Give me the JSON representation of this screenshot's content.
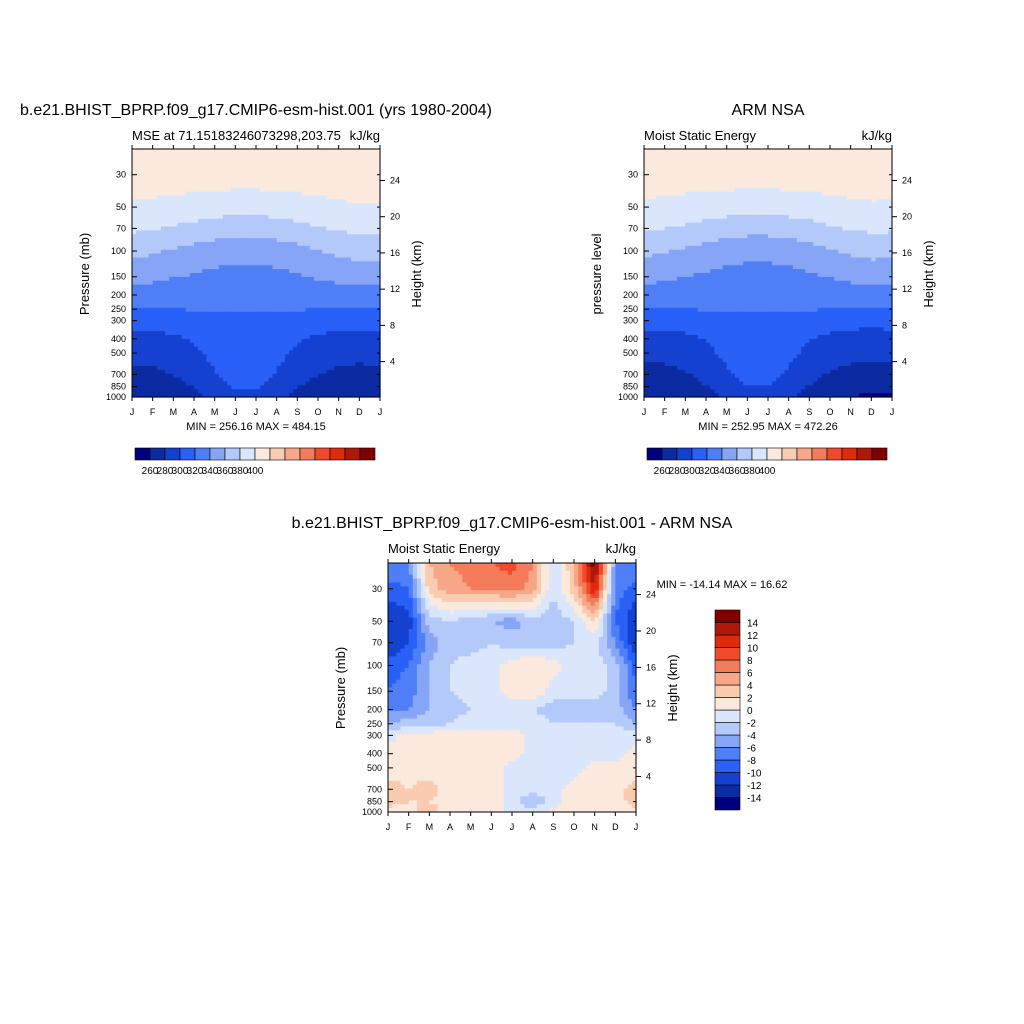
{
  "panels": {
    "top_left": {
      "title": "b.e21.BHIST_BPRP.f09_g17.CMIP6-esm-hist.001 (yrs 1980-2004)",
      "left_label": "MSE at 71.15183246073298,203.75",
      "right_label": "kJ/kg",
      "ylabel": "Pressure (mb)",
      "y2label": "Height (km)",
      "stats": "MIN = 256.16 MAX = 484.15"
    },
    "top_right": {
      "title": "ARM NSA",
      "left_label": "Moist Static Energy",
      "right_label": "kJ/kg",
      "ylabel": "pressure level",
      "y2label": "Height (km)",
      "stats": "MIN = 252.95 MAX = 472.26"
    },
    "bottom": {
      "title": "b.e21.BHIST_BPRP.f09_g17.CMIP6-esm-hist.001 - ARM NSA",
      "left_label": "Moist Static Energy",
      "right_label": "kJ/kg",
      "ylabel": "Pressure (mb)",
      "y2label": "Height (km)",
      "stats": "MIN = -14.14 MAX =  16.62"
    }
  },
  "colors": {
    "mse_levels": [
      "#00007f",
      "#0b2ba3",
      "#1541d0",
      "#2960f7",
      "#4f7ff7",
      "#86a5f7",
      "#b3c9f9",
      "#dae6fb",
      "#fbe9dd",
      "#f9cbb1",
      "#f7a787",
      "#f47c5a",
      "#f14a2a",
      "#de2b0c",
      "#b0190a",
      "#800000"
    ],
    "diff_levels": [
      "#00007f",
      "#0b2ba3",
      "#1541d0",
      "#2960f7",
      "#4f7ff7",
      "#86a5f7",
      "#b3c9f9",
      "#dae6fb",
      "#fbe9dd",
      "#f9cbb1",
      "#f7a787",
      "#f47c5a",
      "#f14a2a",
      "#de2b0c",
      "#b0190a",
      "#800000"
    ]
  },
  "chart_data": [
    {
      "type": "heatmap",
      "panel": "top_left",
      "x": [
        "J",
        "F",
        "M",
        "A",
        "M",
        "J",
        "J",
        "A",
        "S",
        "O",
        "N",
        "D",
        "J"
      ],
      "y_pressure_ticks": [
        30,
        50,
        70,
        100,
        150,
        200,
        250,
        300,
        400,
        500,
        700,
        850,
        1000
      ],
      "y_height_ticks": [
        4,
        8,
        12,
        16,
        20,
        24
      ],
      "ylim": [
        1000,
        20
      ],
      "log_y": true,
      "colorbar_ticks": [
        260,
        280,
        300,
        320,
        340,
        360,
        380,
        400
      ],
      "colorbar_orientation": "horizontal",
      "min": 256.16,
      "max": 484.15,
      "pressure_levels": [
        20,
        30,
        50,
        70,
        100,
        150,
        200,
        250,
        300,
        400,
        500,
        700,
        850,
        1000
      ],
      "values": [
        [
          410,
          410,
          410,
          410,
          410,
          410,
          410,
          410,
          410,
          410,
          410,
          410,
          410
        ],
        [
          410,
          410,
          410,
          410,
          410,
          410,
          410,
          410,
          410,
          410,
          410,
          410,
          410
        ],
        [
          398,
          396,
          394,
          392,
          390,
          388,
          388,
          390,
          392,
          395,
          397,
          399,
          398
        ],
        [
          384,
          381,
          378,
          374,
          370,
          368,
          368,
          370,
          374,
          379,
          382,
          385,
          384
        ],
        [
          366,
          362,
          358,
          354,
          350,
          347,
          347,
          350,
          354,
          360,
          364,
          367,
          366
        ],
        [
          348,
          345,
          341,
          338,
          335,
          333,
          333,
          335,
          338,
          342,
          346,
          349,
          348
        ],
        [
          330,
          329,
          328,
          327,
          327,
          326,
          326,
          327,
          327,
          328,
          329,
          330,
          330
        ],
        [
          320,
          320,
          320,
          321,
          321,
          322,
          322,
          321,
          321,
          320,
          320,
          320,
          320
        ],
        [
          307,
          307,
          308,
          311,
          314,
          316,
          316,
          314,
          311,
          308,
          307,
          306,
          307
        ],
        [
          295,
          295,
          297,
          302,
          308,
          313,
          313,
          308,
          302,
          297,
          295,
          294,
          295
        ],
        [
          287,
          287,
          290,
          297,
          305,
          312,
          312,
          305,
          297,
          290,
          287,
          286,
          287
        ],
        [
          275,
          276,
          280,
          289,
          299,
          309,
          309,
          299,
          289,
          280,
          276,
          274,
          275
        ],
        [
          266,
          267,
          272,
          281,
          292,
          302,
          302,
          292,
          281,
          272,
          267,
          265,
          266
        ],
        [
          262,
          263,
          267,
          275,
          285,
          295,
          295,
          285,
          275,
          267,
          263,
          261,
          262
        ]
      ]
    },
    {
      "type": "heatmap",
      "panel": "top_right",
      "x": [
        "J",
        "F",
        "M",
        "A",
        "M",
        "J",
        "J",
        "A",
        "S",
        "O",
        "N",
        "D",
        "J"
      ],
      "y_pressure_ticks": [
        30,
        50,
        70,
        100,
        150,
        200,
        250,
        300,
        400,
        500,
        700,
        850,
        1000
      ],
      "y_height_ticks": [
        4,
        8,
        12,
        16,
        20,
        24
      ],
      "ylim": [
        1000,
        20
      ],
      "log_y": true,
      "colorbar_ticks": [
        260,
        280,
        300,
        320,
        340,
        360,
        380,
        400
      ],
      "colorbar_orientation": "horizontal",
      "min": 252.95,
      "max": 472.26,
      "pressure_levels": [
        20,
        30,
        50,
        70,
        100,
        150,
        200,
        250,
        300,
        400,
        500,
        700,
        850,
        1000
      ],
      "values": [
        [
          410,
          410,
          410,
          410,
          410,
          410,
          410,
          410,
          410,
          410,
          410,
          410,
          410
        ],
        [
          410,
          410,
          410,
          410,
          410,
          410,
          410,
          410,
          410,
          410,
          410,
          410,
          410
        ],
        [
          397,
          395,
          393,
          391,
          389,
          387,
          387,
          389,
          391,
          394,
          396,
          398,
          397
        ],
        [
          383,
          380,
          377,
          373,
          369,
          367,
          367,
          369,
          373,
          378,
          381,
          384,
          383
        ],
        [
          365,
          361,
          357,
          353,
          349,
          346,
          346,
          349,
          353,
          359,
          363,
          366,
          365
        ],
        [
          347,
          344,
          340,
          337,
          334,
          332,
          332,
          334,
          337,
          341,
          345,
          348,
          347
        ],
        [
          330,
          329,
          328,
          327,
          326,
          326,
          326,
          326,
          327,
          328,
          329,
          330,
          330
        ],
        [
          320,
          320,
          320,
          321,
          321,
          322,
          322,
          321,
          321,
          320,
          320,
          320,
          320
        ],
        [
          306,
          306,
          308,
          311,
          314,
          316,
          316,
          314,
          311,
          308,
          306,
          305,
          306
        ],
        [
          294,
          294,
          296,
          301,
          307,
          312,
          312,
          307,
          301,
          296,
          294,
          293,
          294
        ],
        [
          286,
          286,
          289,
          296,
          304,
          311,
          311,
          304,
          296,
          289,
          286,
          285,
          286
        ],
        [
          273,
          274,
          278,
          287,
          297,
          307,
          307,
          297,
          287,
          278,
          274,
          272,
          273
        ],
        [
          264,
          265,
          270,
          279,
          290,
          300,
          300,
          290,
          279,
          270,
          265,
          263,
          264
        ],
        [
          259,
          260,
          264,
          272,
          282,
          292,
          292,
          282,
          272,
          264,
          260,
          258,
          259
        ]
      ]
    },
    {
      "type": "heatmap",
      "panel": "bottom",
      "x": [
        "J",
        "F",
        "M",
        "A",
        "M",
        "J",
        "J",
        "A",
        "S",
        "O",
        "N",
        "D",
        "J"
      ],
      "y_pressure_ticks": [
        30,
        50,
        70,
        100,
        150,
        200,
        250,
        300,
        400,
        500,
        700,
        850,
        1000
      ],
      "y_height_ticks": [
        4,
        8,
        12,
        16,
        20,
        24
      ],
      "ylim": [
        1000,
        20
      ],
      "log_y": true,
      "colorbar_ticks": [
        -14,
        -12,
        -10,
        -8,
        -6,
        -4,
        -2,
        0,
        2,
        4,
        6,
        8,
        10,
        12,
        14
      ],
      "colorbar_orientation": "vertical",
      "min": -14.14,
      "max": 16.62,
      "pressure_levels": [
        20,
        30,
        50,
        70,
        100,
        150,
        200,
        250,
        300,
        400,
        500,
        700,
        850,
        1000
      ],
      "values": [
        [
          -6,
          -6,
          4,
          6,
          7,
          8,
          9,
          6,
          -2,
          4,
          16,
          -6,
          -6
        ],
        [
          -9,
          -8,
          3,
          5,
          6,
          6,
          7,
          5,
          -2,
          3,
          12,
          -7,
          -9
        ],
        [
          -12,
          -11,
          -3,
          -2,
          -3,
          -4,
          -5,
          -3,
          -3,
          -2,
          2,
          -8,
          -12
        ],
        [
          -12,
          -10,
          -5,
          -3,
          -3,
          -2,
          -3,
          -3,
          -3,
          -2,
          -1,
          -6,
          -12
        ],
        [
          -9,
          -8,
          -4,
          -2,
          -1,
          -1,
          1,
          2,
          1,
          -1,
          -1,
          -3,
          -9
        ],
        [
          -8,
          -7,
          -4,
          -2,
          -1,
          -1,
          1,
          2,
          -1,
          -1,
          -1,
          -3,
          -8
        ],
        [
          -6,
          -6,
          -4,
          -3,
          -2,
          -2,
          -1,
          -2,
          -3,
          -3,
          -3,
          -3,
          -6
        ],
        [
          -4,
          -3,
          -3,
          -2,
          -1,
          -1,
          -1,
          -1,
          -2,
          -2,
          -2,
          -2,
          -4
        ],
        [
          -1,
          1,
          1,
          1,
          1,
          1,
          1,
          -1,
          -1,
          -1,
          -1,
          -1,
          -1
        ],
        [
          1,
          1,
          1,
          1,
          1,
          1,
          1,
          -1,
          -1,
          -1,
          -1,
          -1,
          1
        ],
        [
          1,
          1,
          1,
          1,
          1,
          1,
          -1,
          -1,
          -1,
          -1,
          1,
          1,
          1
        ],
        [
          3,
          2,
          3,
          1,
          1,
          1,
          -1,
          -1,
          -1,
          1,
          1,
          1,
          3
        ],
        [
          3,
          2,
          2,
          1,
          1,
          1,
          -1,
          -4,
          -1,
          1,
          1,
          1,
          3
        ],
        [
          1,
          1,
          3,
          1,
          1,
          1,
          -1,
          -1,
          1,
          1,
          2,
          1,
          1
        ]
      ]
    }
  ]
}
